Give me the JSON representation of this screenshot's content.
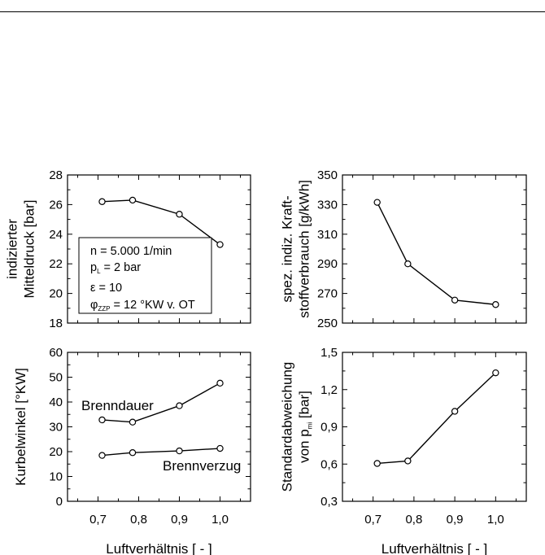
{
  "chart_data": [
    {
      "id": "tl",
      "type": "line",
      "x": [
        0.71,
        0.785,
        0.9,
        1.0
      ],
      "series": [
        {
          "values": [
            26.2,
            26.3,
            25.35,
            23.3
          ]
        }
      ],
      "xlim": [
        0.625,
        1.075
      ],
      "ylim": [
        18,
        28
      ],
      "yticks": [
        "18",
        "20",
        "22",
        "24",
        "26",
        "28"
      ],
      "xticks": [],
      "ylabel_lines": [
        "indizierter",
        "Mitteldruck [bar]"
      ],
      "annotation": {
        "n": "n = 5.000 1/min",
        "pl_prefix": "p",
        "pl_sub": "L",
        "pl_rest": " = 2 bar",
        "eps": "ε = 10",
        "phi_prefix": "φ",
        "phi_sub": "ZZP",
        "phi_rest": " = 12 °KW v. OT"
      }
    },
    {
      "id": "tr",
      "type": "line",
      "x": [
        0.71,
        0.785,
        0.9,
        1.0
      ],
      "series": [
        {
          "values": [
            331.5,
            290,
            265.5,
            262.5
          ]
        }
      ],
      "xlim": [
        0.625,
        1.075
      ],
      "ylim": [
        250,
        350
      ],
      "yticks": [
        "250",
        "270",
        "290",
        "310",
        "330",
        "350"
      ],
      "xticks": [],
      "ylabel_lines": [
        "spez. indiz. Kraft-",
        "stoffverbrauch [g/kWh]"
      ]
    },
    {
      "id": "bl",
      "type": "line",
      "x": [
        0.71,
        0.785,
        0.9,
        1.0
      ],
      "series": [
        {
          "name": "Brenndauer",
          "values": [
            32.8,
            31.9,
            38.5,
            47.6
          ]
        },
        {
          "name": "Brennverzug",
          "values": [
            18.5,
            19.6,
            20.3,
            21.3
          ]
        }
      ],
      "xlim": [
        0.625,
        1.075
      ],
      "ylim": [
        0,
        60
      ],
      "yticks": [
        "0",
        "10",
        "20",
        "30",
        "40",
        "50",
        "60"
      ],
      "xticks": [
        "0,7",
        "0,8",
        "0,9",
        "1,0"
      ],
      "ylabel_lines": [
        "Kurbelwinkel [°KW]"
      ],
      "xlabel": "Luftverhältnis [ - ]"
    },
    {
      "id": "br",
      "type": "line",
      "x": [
        0.71,
        0.785,
        0.9,
        1.0
      ],
      "series": [
        {
          "values": [
            0.605,
            0.625,
            1.025,
            1.335
          ]
        }
      ],
      "xlim": [
        0.625,
        1.075
      ],
      "ylim": [
        0.3,
        1.5
      ],
      "yticks": [
        "0,3",
        "0,6",
        "0,9",
        "1,2",
        "1,5"
      ],
      "xticks": [
        "0,7",
        "0,8",
        "0,9",
        "1,0"
      ],
      "ylabel_lines": [
        "Standardabweichung",
        "von p"
      ],
      "ylabel_sub": "mi",
      "ylabel_suffix": " [bar]",
      "xlabel": "Luftverhältnis [ - ]"
    }
  ]
}
